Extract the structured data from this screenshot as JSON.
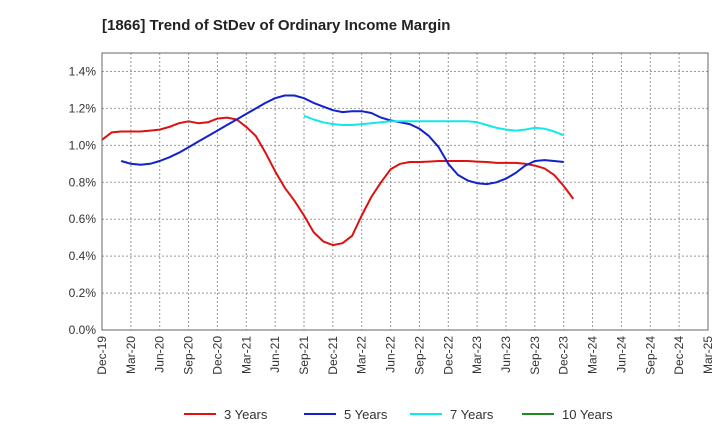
{
  "chart_data": {
    "type": "line",
    "title": "[1866]  Trend of StDev of Ordinary Income Margin",
    "xlabel": "",
    "ylabel": "",
    "x_ticks": [
      "Dec-19",
      "Mar-20",
      "Jun-20",
      "Sep-20",
      "Dec-20",
      "Mar-21",
      "Jun-21",
      "Sep-21",
      "Dec-21",
      "Mar-22",
      "Jun-22",
      "Sep-22",
      "Dec-22",
      "Mar-23",
      "Jun-23",
      "Sep-23",
      "Dec-23",
      "Mar-24",
      "Jun-24",
      "Sep-24",
      "Dec-24",
      "Mar-25"
    ],
    "y_ticks": [
      "0.0%",
      "0.2%",
      "0.4%",
      "0.6%",
      "0.8%",
      "1.0%",
      "1.2%",
      "1.4%"
    ],
    "ylim": [
      0,
      1.5
    ],
    "grid": true,
    "legend_position": "bottom",
    "series": [
      {
        "name": "3 Years",
        "color": "#dd1111",
        "points": [
          [
            0,
            1.03
          ],
          [
            1,
            1.07
          ],
          [
            2,
            1.075
          ],
          [
            3,
            1.075
          ],
          [
            4,
            1.075
          ],
          [
            5,
            1.08
          ],
          [
            6,
            1.085
          ],
          [
            7,
            1.1
          ],
          [
            8,
            1.12
          ],
          [
            9,
            1.13
          ],
          [
            10,
            1.12
          ],
          [
            11,
            1.125
          ],
          [
            12,
            1.145
          ],
          [
            13,
            1.15
          ],
          [
            14,
            1.14
          ],
          [
            15,
            1.1
          ],
          [
            16,
            1.05
          ],
          [
            17,
            0.96
          ],
          [
            18,
            0.86
          ],
          [
            19,
            0.77
          ],
          [
            20,
            0.7
          ],
          [
            21,
            0.62
          ],
          [
            22,
            0.53
          ],
          [
            23,
            0.48
          ],
          [
            24,
            0.46
          ],
          [
            25,
            0.47
          ],
          [
            26,
            0.51
          ],
          [
            27,
            0.62
          ],
          [
            28,
            0.72
          ],
          [
            29,
            0.8
          ],
          [
            30,
            0.87
          ],
          [
            31,
            0.9
          ],
          [
            32,
            0.91
          ],
          [
            33,
            0.91
          ],
          [
            34,
            0.912
          ],
          [
            35,
            0.915
          ],
          [
            36,
            0.915
          ],
          [
            37,
            0.915
          ],
          [
            38,
            0.915
          ],
          [
            39,
            0.912
          ],
          [
            40,
            0.91
          ],
          [
            41,
            0.905
          ],
          [
            42,
            0.905
          ],
          [
            43,
            0.905
          ],
          [
            44,
            0.9
          ],
          [
            45,
            0.89
          ],
          [
            46,
            0.875
          ],
          [
            47,
            0.84
          ],
          [
            48,
            0.78
          ],
          [
            49,
            0.71
          ]
        ]
      },
      {
        "name": "5 Years",
        "color": "#1122cc",
        "points": [
          [
            2,
            0.915
          ],
          [
            3,
            0.9
          ],
          [
            4,
            0.895
          ],
          [
            5,
            0.9
          ],
          [
            6,
            0.915
          ],
          [
            7,
            0.935
          ],
          [
            8,
            0.96
          ],
          [
            9,
            0.99
          ],
          [
            10,
            1.02
          ],
          [
            11,
            1.05
          ],
          [
            12,
            1.08
          ],
          [
            13,
            1.11
          ],
          [
            14,
            1.14
          ],
          [
            15,
            1.17
          ],
          [
            16,
            1.2
          ],
          [
            17,
            1.23
          ],
          [
            18,
            1.255
          ],
          [
            19,
            1.27
          ],
          [
            20,
            1.27
          ],
          [
            21,
            1.255
          ],
          [
            22,
            1.23
          ],
          [
            23,
            1.21
          ],
          [
            24,
            1.19
          ],
          [
            25,
            1.18
          ],
          [
            26,
            1.185
          ],
          [
            27,
            1.185
          ],
          [
            28,
            1.175
          ],
          [
            29,
            1.15
          ],
          [
            30,
            1.135
          ],
          [
            31,
            1.125
          ],
          [
            32,
            1.115
          ],
          [
            33,
            1.09
          ],
          [
            34,
            1.05
          ],
          [
            35,
            0.99
          ],
          [
            36,
            0.9
          ],
          [
            37,
            0.84
          ],
          [
            38,
            0.81
          ],
          [
            39,
            0.795
          ],
          [
            40,
            0.79
          ],
          [
            41,
            0.8
          ],
          [
            42,
            0.82
          ],
          [
            43,
            0.85
          ],
          [
            44,
            0.89
          ],
          [
            45,
            0.915
          ],
          [
            46,
            0.92
          ],
          [
            47,
            0.915
          ],
          [
            48,
            0.91
          ]
        ]
      },
      {
        "name": "7 Years",
        "color": "#11e8e8",
        "points": [
          [
            21,
            1.16
          ],
          [
            22,
            1.14
          ],
          [
            23,
            1.125
          ],
          [
            24,
            1.115
          ],
          [
            25,
            1.11
          ],
          [
            26,
            1.11
          ],
          [
            27,
            1.115
          ],
          [
            28,
            1.12
          ],
          [
            29,
            1.125
          ],
          [
            30,
            1.13
          ],
          [
            31,
            1.13
          ],
          [
            32,
            1.13
          ],
          [
            33,
            1.13
          ],
          [
            34,
            1.13
          ],
          [
            35,
            1.13
          ],
          [
            36,
            1.13
          ],
          [
            37,
            1.13
          ],
          [
            38,
            1.13
          ],
          [
            39,
            1.125
          ],
          [
            40,
            1.11
          ],
          [
            41,
            1.095
          ],
          [
            42,
            1.085
          ],
          [
            43,
            1.08
          ],
          [
            44,
            1.085
          ],
          [
            45,
            1.095
          ],
          [
            46,
            1.09
          ],
          [
            47,
            1.075
          ],
          [
            48,
            1.055
          ]
        ]
      },
      {
        "name": "10 Years",
        "color": "#228822",
        "points": []
      }
    ]
  }
}
